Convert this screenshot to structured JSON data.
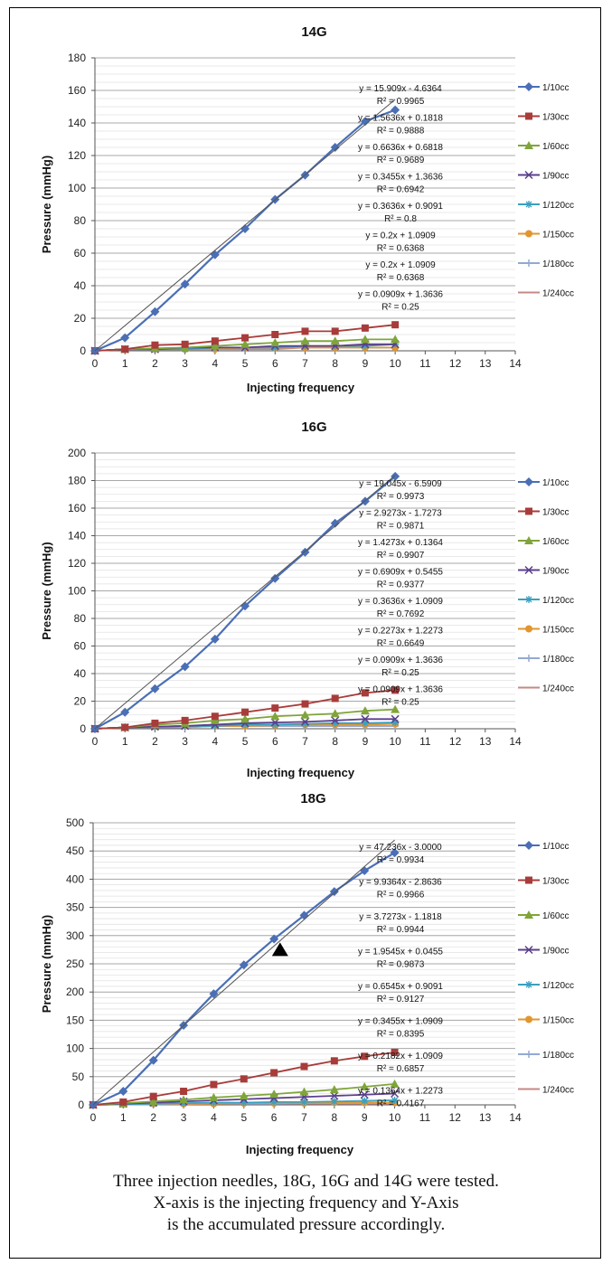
{
  "chart_data": [
    {
      "type": "line",
      "title": "14G",
      "xlabel": "Injecting frequency",
      "ylabel": "Pressure (mmHg)",
      "xlim": [
        0,
        14
      ],
      "ylim": [
        0,
        180
      ],
      "ystep": 20,
      "yminor": 5,
      "x_ticks": [
        0,
        1,
        2,
        3,
        4,
        5,
        6,
        7,
        8,
        9,
        10,
        11,
        12,
        13,
        14
      ],
      "y_ticks": [
        0,
        20,
        40,
        60,
        80,
        100,
        120,
        140,
        160,
        180
      ],
      "grid": true,
      "legend_position": "right",
      "x": [
        0,
        1,
        2,
        3,
        4,
        5,
        6,
        7,
        8,
        9,
        10
      ],
      "trendline_series": 0,
      "series": [
        {
          "name": "1/10cc",
          "color": "#4a6fb5",
          "marker": "diamond",
          "values": [
            0,
            8,
            24,
            41,
            59,
            75,
            93,
            108,
            125,
            141,
            148
          ],
          "equation": "y = 15.909x - 4.6364",
          "r2": "R² = 0.9965",
          "slope": 15.909,
          "intercept": -4.6364
        },
        {
          "name": "1/30cc",
          "color": "#a83c3a",
          "marker": "square",
          "values": [
            0,
            1,
            3.5,
            4,
            6,
            8,
            10,
            12,
            12,
            14,
            16
          ],
          "equation": "y = 1.5636x + 0.1818",
          "r2": "R² = 0.9888",
          "slope": 1.5636,
          "intercept": 0.1818
        },
        {
          "name": "1/60cc",
          "color": "#7fa53a",
          "marker": "triangle",
          "values": [
            0,
            1,
            1.5,
            2,
            3,
            4,
            5,
            6,
            6,
            7,
            7
          ],
          "equation": "y = 0.6636x + 0.6818",
          "r2": "R² = 0.9689",
          "slope": 0.6636,
          "intercept": 0.6818
        },
        {
          "name": "1/90cc",
          "color": "#5a3f8c",
          "marker": "x",
          "values": [
            0,
            1,
            1,
            2,
            2,
            2,
            3,
            3,
            3,
            4,
            4
          ],
          "equation": "y = 0.3455x + 1.3636",
          "r2": "R² = 0.6942",
          "slope": 0.3455,
          "intercept": 1.3636
        },
        {
          "name": "1/120cc",
          "color": "#3aa0c0",
          "marker": "star",
          "values": [
            0,
            1,
            1,
            1,
            2,
            2,
            2,
            3,
            3,
            3,
            4
          ],
          "equation": "y = 0.3636x + 0.9091",
          "r2": "R² = 0.8",
          "slope": 0.3636,
          "intercept": 0.9091
        },
        {
          "name": "1/150cc",
          "color": "#e2962f",
          "marker": "circle",
          "values": [
            0,
            1,
            1,
            1,
            1,
            2,
            2,
            2,
            2,
            2,
            2
          ],
          "equation": "y = 0.2x + 1.0909",
          "r2": "R² = 0.6368",
          "slope": 0.2,
          "intercept": 1.0909
        },
        {
          "name": "1/180cc",
          "color": "#93a9d3",
          "marker": "plus",
          "values": [
            0,
            1,
            1,
            1,
            1,
            2,
            2,
            2,
            2,
            2,
            2
          ],
          "equation": "y = 0.2x + 1.0909",
          "r2": "R² = 0.6368",
          "slope": 0.2,
          "intercept": 1.0909
        },
        {
          "name": "1/240cc",
          "color": "#c48886",
          "marker": "none",
          "values": [
            0,
            1,
            1,
            1,
            1,
            1,
            1,
            2,
            2,
            2,
            2
          ],
          "equation": "y = 0.0909x + 1.3636",
          "r2": "R² = 0.25",
          "slope": 0.0909,
          "intercept": 1.3636
        }
      ]
    },
    {
      "type": "line",
      "title": "16G",
      "xlabel": "Injecting frequency",
      "ylabel": "Pressure (mmHg)",
      "xlim": [
        0,
        14
      ],
      "ylim": [
        0,
        200
      ],
      "ystep": 20,
      "yminor": 5,
      "x_ticks": [
        0,
        1,
        2,
        3,
        4,
        5,
        6,
        7,
        8,
        9,
        10,
        11,
        12,
        13,
        14
      ],
      "y_ticks": [
        0,
        20,
        40,
        60,
        80,
        100,
        120,
        140,
        160,
        180,
        200
      ],
      "grid": true,
      "legend_position": "right",
      "x": [
        0,
        1,
        2,
        3,
        4,
        5,
        6,
        7,
        8,
        9,
        10
      ],
      "trendline_series": 0,
      "series": [
        {
          "name": "1/10cc",
          "color": "#4a6fb5",
          "marker": "diamond",
          "values": [
            0,
            12,
            29,
            45,
            65,
            89,
            109,
            128,
            149,
            165,
            183
          ],
          "equation": "y = 19.045x - 6.5909",
          "r2": "R² = 0.9973",
          "slope": 19.045,
          "intercept": -6.5909
        },
        {
          "name": "1/30cc",
          "color": "#a83c3a",
          "marker": "square",
          "values": [
            0,
            1,
            4,
            6,
            9,
            12,
            15,
            18,
            22,
            26,
            28
          ],
          "equation": "y = 2.9273x - 1.7273",
          "r2": "R² = 0.9871",
          "slope": 2.9273,
          "intercept": -1.7273
        },
        {
          "name": "1/60cc",
          "color": "#7fa53a",
          "marker": "triangle",
          "values": [
            0,
            1,
            3,
            4,
            6,
            7,
            9,
            10,
            11,
            13,
            14
          ],
          "equation": "y = 1.4273x + 0.1364",
          "r2": "R² = 0.9907",
          "slope": 1.4273,
          "intercept": 0.1364
        },
        {
          "name": "1/90cc",
          "color": "#5a3f8c",
          "marker": "x",
          "values": [
            0,
            1,
            1.5,
            2,
            3,
            4,
            4.5,
            5,
            6,
            7,
            7
          ],
          "equation": "y = 0.6909x + 0.5455",
          "r2": "R² = 0.9377",
          "slope": 0.6909,
          "intercept": 0.5455
        },
        {
          "name": "1/120cc",
          "color": "#3aa0c0",
          "marker": "star",
          "values": [
            0,
            1,
            1.5,
            2,
            2,
            3,
            3,
            3.5,
            4,
            4,
            4.5
          ],
          "equation": "y = 0.3636x + 1.0909",
          "r2": "R² = 0.7692",
          "slope": 0.3636,
          "intercept": 1.0909
        },
        {
          "name": "1/150cc",
          "color": "#e2962f",
          "marker": "circle",
          "values": [
            0,
            1,
            1.5,
            2,
            2,
            2,
            2.5,
            3,
            3,
            3,
            3.5
          ],
          "equation": "y = 0.2273x + 1.2273",
          "r2": "R² = 0.6649",
          "slope": 0.2273,
          "intercept": 1.2273
        },
        {
          "name": "1/180cc",
          "color": "#93a9d3",
          "marker": "plus",
          "values": [
            0,
            1,
            1,
            1,
            2,
            2,
            2,
            2,
            2,
            2,
            2
          ],
          "equation": "y = 0.0909x + 1.3636",
          "r2": "R² = 0.25",
          "slope": 0.0909,
          "intercept": 1.3636
        },
        {
          "name": "1/240cc",
          "color": "#c48886",
          "marker": "none",
          "values": [
            0,
            1,
            1,
            1,
            2,
            2,
            2,
            2,
            2,
            2,
            2
          ],
          "equation": "y = 0.0909x + 1.3636",
          "r2": "R² = 0.25",
          "slope": 0.0909,
          "intercept": 1.3636
        }
      ]
    },
    {
      "type": "line",
      "title": "18G",
      "xlabel": "Injecting frequency",
      "ylabel": "Pressure (mmHg)",
      "xlim": [
        0,
        14
      ],
      "ylim": [
        0,
        500
      ],
      "ystep": 50,
      "yminor": 10,
      "x_ticks": [
        0,
        1,
        2,
        3,
        4,
        5,
        6,
        7,
        8,
        9,
        10,
        11,
        12,
        13,
        14
      ],
      "y_ticks": [
        0,
        50,
        100,
        150,
        200,
        250,
        300,
        350,
        400,
        450,
        500
      ],
      "grid": true,
      "legend_position": "right",
      "x": [
        0,
        1,
        2,
        3,
        4,
        5,
        6,
        7,
        8,
        9,
        10
      ],
      "trendline_series": 0,
      "annotation_marker": {
        "shape": "filled-triangle",
        "x": 6.2,
        "y": 275
      },
      "series": [
        {
          "name": "1/10cc",
          "color": "#4a6fb5",
          "marker": "diamond",
          "values": [
            0,
            24,
            79,
            141,
            197,
            248,
            294,
            336,
            378,
            415,
            447
          ],
          "equation": "y = 47.236x - 3.0000",
          "r2": "R² = 0.9934",
          "slope": 47.236,
          "intercept": -3.0
        },
        {
          "name": "1/30cc",
          "color": "#a83c3a",
          "marker": "square",
          "values": [
            0,
            5,
            15,
            24,
            36,
            46,
            57,
            68,
            78,
            86,
            93
          ],
          "equation": "y = 9.9364x - 2.8636",
          "r2": "R² = 0.9966",
          "slope": 9.9364,
          "intercept": -2.8636
        },
        {
          "name": "1/60cc",
          "color": "#7fa53a",
          "marker": "triangle",
          "values": [
            0,
            3,
            6,
            9,
            13,
            16,
            19,
            23,
            27,
            32,
            37
          ],
          "equation": "y = 3.7273x - 1.1818",
          "r2": "R² = 0.9944",
          "slope": 3.7273,
          "intercept": -1.1818
        },
        {
          "name": "1/90cc",
          "color": "#5a3f8c",
          "marker": "x",
          "values": [
            0,
            2,
            4,
            6,
            8,
            10,
            12,
            14,
            16,
            18,
            20
          ],
          "equation": "y = 1.9545x + 0.0455",
          "r2": "R² = 0.9873",
          "slope": 1.9545,
          "intercept": 0.0455
        },
        {
          "name": "1/120cc",
          "color": "#3aa0c0",
          "marker": "star",
          "values": [
            0,
            1,
            2,
            3,
            4,
            4,
            5,
            5,
            6,
            7,
            8
          ],
          "equation": "y = 0.6545x + 0.9091",
          "r2": "R² = 0.9127",
          "slope": 0.6545,
          "intercept": 0.9091
        },
        {
          "name": "1/150cc",
          "color": "#e2962f",
          "marker": "circle",
          "values": [
            0,
            1,
            2,
            2,
            2,
            3,
            3,
            3,
            4,
            4,
            4
          ],
          "equation": "y = 0.3455x + 1.0909",
          "r2": "R² = 0.8395",
          "slope": 0.3455,
          "intercept": 1.0909
        },
        {
          "name": "1/180cc",
          "color": "#93a9d3",
          "marker": "plus",
          "values": [
            0,
            1,
            1,
            2,
            2,
            2,
            2,
            3,
            3,
            3,
            3
          ],
          "equation": "y = 0.2182x + 1.0909",
          "r2": "R² = 0.6857",
          "slope": 0.2182,
          "intercept": 1.0909
        },
        {
          "name": "1/240cc",
          "color": "#c48886",
          "marker": "none",
          "values": [
            0,
            1,
            1,
            1,
            2,
            2,
            2,
            2,
            2,
            2,
            2
          ],
          "equation": "y = 0.1364x + 1.2273",
          "r2": "R² = 0.4167",
          "slope": 0.1364,
          "intercept": 1.2273
        }
      ]
    }
  ],
  "caption": {
    "line1": "Three injection needles, 18G, 16G and 14G were tested.",
    "line2": "X-axis is the injecting frequency and Y-Axis",
    "line3": "is the accumulated pressure accordingly."
  }
}
